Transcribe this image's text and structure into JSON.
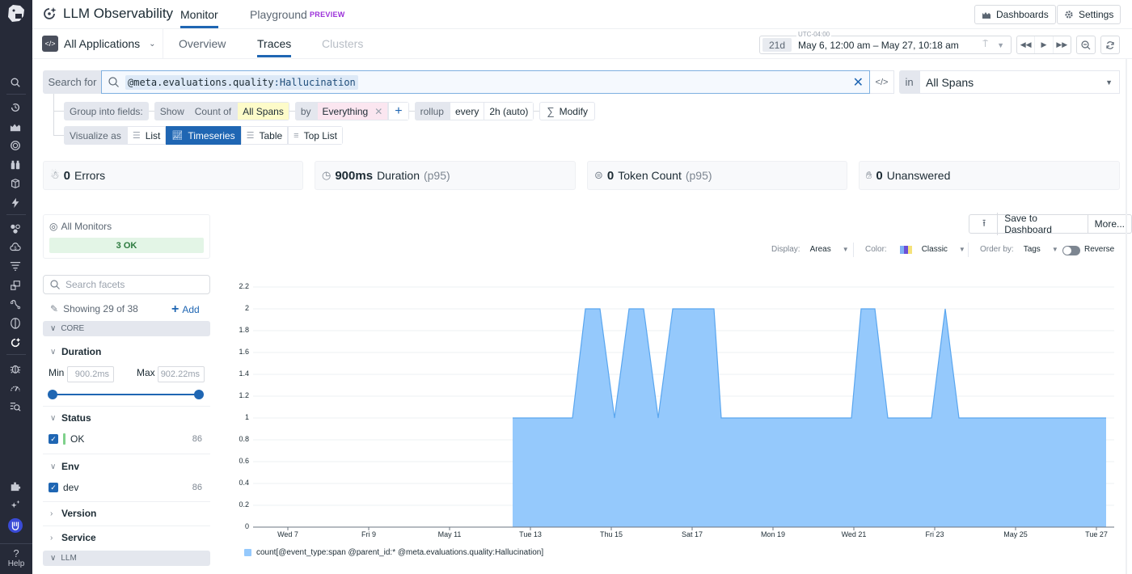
{
  "app": {
    "title": "LLM Observability",
    "top_tabs": [
      {
        "label": "Monitor",
        "active": true
      },
      {
        "label": "Playground",
        "active": false,
        "badge": "PREVIEW"
      }
    ],
    "header_buttons": {
      "dashboards": "Dashboards",
      "settings": "Settings"
    }
  },
  "subheader": {
    "app_selector": "All Applications",
    "tabs": [
      {
        "label": "Overview",
        "state": "inactive"
      },
      {
        "label": "Traces",
        "state": "active"
      },
      {
        "label": "Clusters",
        "state": "disabled"
      }
    ],
    "time": {
      "timezone": "UTC-04:00",
      "duration": "21d",
      "range": "May 6, 12:00 am – May 27, 10:18 am"
    }
  },
  "sidebar": {
    "icons": [
      "search-icon",
      "recent-icon",
      "dashboards-icon",
      "monitors-icon",
      "binoculars-icon",
      "infrastructure-icon",
      "lightning-icon",
      "service-map-icon",
      "cloud-cost-icon",
      "logs-icon",
      "apm-icon",
      "synthetics-icon",
      "security-icon",
      "llm-icon",
      "bug-icon",
      "performance-icon",
      "ci-icon"
    ],
    "bottom_icons": [
      "integrations-icon",
      "ai-sparkle-icon",
      "user-avatar-icon"
    ],
    "help_label": "Help"
  },
  "query": {
    "search_for_label": "Search for",
    "query_key": "@meta.evaluations.quality",
    "query_sep": ":",
    "query_value": "Hallucination",
    "in_label": "in",
    "in_value": "All Spans",
    "group_label": "Group into fields:",
    "show_label": "Show",
    "count_of_label": "Count of",
    "count_of_value": "All Spans",
    "by_label": "by",
    "by_value": "Everything",
    "rollup_label": "rollup",
    "every_label": "every",
    "every_value": "2h (auto)",
    "modify_label": "Modify",
    "visualize_label": "Visualize as",
    "visualize_options": [
      {
        "label": "List",
        "active": false
      },
      {
        "label": "Timeseries",
        "active": true
      },
      {
        "label": "Table",
        "active": false
      },
      {
        "label": "Top List",
        "active": false
      }
    ]
  },
  "stats": [
    {
      "value": "0",
      "label": "Errors",
      "suffix": "",
      "icon": "bug-icon"
    },
    {
      "value": "900ms",
      "label": "Duration",
      "suffix": "(p95)",
      "icon": "stopwatch-icon"
    },
    {
      "value": "0",
      "label": "Token Count",
      "suffix": "(p95)",
      "icon": "token-icon"
    },
    {
      "value": "0",
      "label": "Unanswered",
      "suffix": "",
      "icon": "hand-icon"
    }
  ],
  "facets": {
    "monitors_title": "All Monitors",
    "monitors_status": "3 OK",
    "search_placeholder": "Search facets",
    "showing": "Showing 29 of 38",
    "add_label": "Add",
    "sections": [
      {
        "label": "CORE"
      },
      {
        "label": "LLM"
      }
    ],
    "duration": {
      "title": "Duration",
      "min_label": "Min",
      "min_value": "900.2ms",
      "max_label": "Max",
      "max_value": "902.22ms"
    },
    "status": {
      "title": "Status",
      "items": [
        {
          "label": "OK",
          "count": "86",
          "checked": true
        }
      ]
    },
    "env": {
      "title": "Env",
      "items": [
        {
          "label": "dev",
          "count": "86",
          "checked": true
        }
      ]
    },
    "version": {
      "title": "Version"
    },
    "service": {
      "title": "Service"
    }
  },
  "chart_controls": {
    "save_label": "Save to Dashboard",
    "more_label": "More...",
    "display_label": "Display:",
    "display_value": "Areas",
    "color_label": "Color:",
    "color_value": "Classic",
    "order_label": "Order by:",
    "order_value": "Tags",
    "reverse_label": "Reverse"
  },
  "chart_data": {
    "type": "area",
    "title": "",
    "xlabel": "",
    "ylabel": "",
    "ylim": [
      0,
      2.2
    ],
    "yticks": [
      "0",
      "0.2",
      "0.4",
      "0.6",
      "0.8",
      "1",
      "1.2",
      "1.4",
      "1.6",
      "1.8",
      "2",
      "2.2"
    ],
    "xticks": [
      {
        "label": "Wed 7",
        "day": 0
      },
      {
        "label": "Fri 9",
        "day": 2
      },
      {
        "label": "May 11",
        "day": 4
      },
      {
        "label": "Tue 13",
        "day": 6
      },
      {
        "label": "Thu 15",
        "day": 8
      },
      {
        "label": "Sat 17",
        "day": 10
      },
      {
        "label": "Mon 19",
        "day": 12
      },
      {
        "label": "Wed 21",
        "day": 14
      },
      {
        "label": "Fri 23",
        "day": 16
      },
      {
        "label": "May 25",
        "day": 18
      },
      {
        "label": "Tue 27",
        "day": 20
      }
    ],
    "x_unit": "days since Wed May 7 00:00",
    "series": [
      {
        "name": "count[@event_type:span @parent_id:* @meta.evaluations.quality:Hallucination]",
        "color": "#95c9fc",
        "line_color": "#5aa6ef",
        "points": [
          [
            5.56,
            0
          ],
          [
            5.56,
            1
          ],
          [
            7.04,
            1
          ],
          [
            7.36,
            2
          ],
          [
            7.72,
            2
          ],
          [
            8.08,
            1
          ],
          [
            8.44,
            2
          ],
          [
            8.8,
            2
          ],
          [
            9.16,
            1
          ],
          [
            9.52,
            2
          ],
          [
            10.54,
            2
          ],
          [
            10.72,
            1
          ],
          [
            13.94,
            1
          ],
          [
            14.18,
            2
          ],
          [
            14.52,
            2
          ],
          [
            14.84,
            1
          ],
          [
            15.92,
            1
          ],
          [
            16.26,
            2
          ],
          [
            16.6,
            1
          ],
          [
            20.24,
            1
          ],
          [
            20.24,
            0
          ]
        ]
      }
    ],
    "grid": true,
    "legend_position": "bottom-left"
  }
}
